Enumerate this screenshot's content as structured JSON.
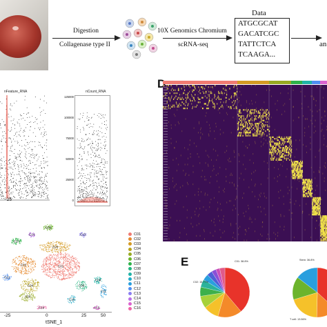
{
  "workflow": {
    "step1_top": "Digestion",
    "step1_bottom": "Collagenase type II",
    "step2_top": "10X Genomics Chromium",
    "step2_bottom": "scRNA-seq",
    "data_title": "Data",
    "sequences": [
      "ATGCGCAT",
      "GACATCGC",
      "TATTCTCA",
      "TCAAGA..."
    ],
    "truncated_label": "an"
  },
  "panels": {
    "D": "D",
    "E": "E"
  },
  "violin": {
    "left_title": "nFeature_RNA",
    "right_title": "nCount_RNA",
    "right_ticks": [
      "125000",
      "100000",
      "75000",
      "50000",
      "25000",
      "0"
    ]
  },
  "tsne": {
    "x_label": "tSNE_1",
    "x_ticks": [
      "-25",
      "0",
      "25",
      "50"
    ],
    "cluster_labels": [
      "C01",
      "C02",
      "C03",
      "C04",
      "C05",
      "C06",
      "C07",
      "C08",
      "C09",
      "C10",
      "C11",
      "C12",
      "C13",
      "C14",
      "C15",
      "C16"
    ]
  },
  "legend": {
    "items": [
      {
        "label": "C01",
        "color": "#f07b72"
      },
      {
        "label": "C02",
        "color": "#e58a2e"
      },
      {
        "label": "C03",
        "color": "#d49a23"
      },
      {
        "label": "C04",
        "color": "#b7a21c"
      },
      {
        "label": "C05",
        "color": "#97aa22"
      },
      {
        "label": "C06",
        "color": "#6cb42c"
      },
      {
        "label": "C07",
        "color": "#2eb34a"
      },
      {
        "label": "C08",
        "color": "#23b47f"
      },
      {
        "label": "C09",
        "color": "#21b3a6"
      },
      {
        "label": "C10",
        "color": "#22abc8"
      },
      {
        "label": "C11",
        "color": "#2a9fde"
      },
      {
        "label": "C12",
        "color": "#4f8ef0"
      },
      {
        "label": "C13",
        "color": "#8b7ef2"
      },
      {
        "label": "C14",
        "color": "#b96fe8"
      },
      {
        "label": "C15",
        "color": "#dc63cf"
      },
      {
        "label": "C16",
        "color": "#ef65a7"
      }
    ]
  },
  "heatmap": {
    "group_colors": [
      "#f07b72",
      "#d49a23",
      "#97aa22",
      "#2eb34a",
      "#21b3a6",
      "#4f8ef0",
      "#dc63cf"
    ],
    "low_color": "#3b0f53",
    "high_color": "#f6e84a"
  },
  "pie_left": {
    "top_label": "C01: 38.8%",
    "left_label": "C02: 15.77%"
  },
  "pie_right": {
    "top_label": "Stem: 36.8%",
    "bottom_label": "T cell: 13.56%"
  }
}
